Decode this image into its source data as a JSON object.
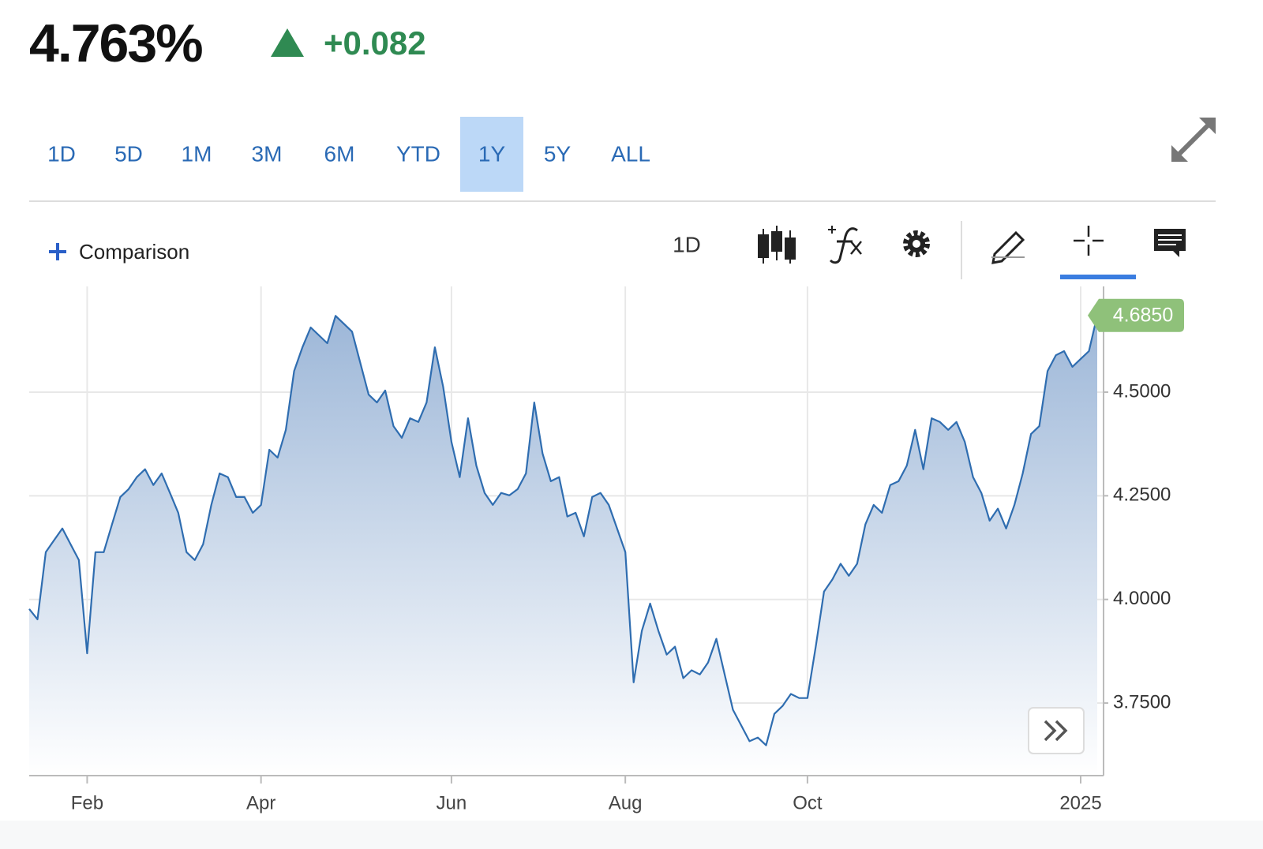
{
  "header": {
    "price": "4.763%",
    "change": "+0.082"
  },
  "ranges": [
    "1D",
    "5D",
    "1M",
    "3M",
    "6M",
    "YTD",
    "1Y",
    "5Y",
    "ALL"
  ],
  "selected_range": "1Y",
  "toolbar": {
    "comparison": "Comparison",
    "interval": "1D"
  },
  "chart_data": {
    "type": "area",
    "categories": [
      null,
      null,
      null,
      null,
      null,
      null,
      null,
      "Feb",
      null,
      null,
      null,
      null,
      null,
      null,
      null,
      null,
      null,
      null,
      null,
      null,
      null,
      null,
      null,
      null,
      null,
      null,
      null,
      null,
      "Apr",
      null,
      null,
      null,
      null,
      null,
      null,
      null,
      null,
      null,
      null,
      null,
      null,
      null,
      null,
      null,
      null,
      null,
      null,
      null,
      null,
      null,
      null,
      "Jun",
      null,
      null,
      null,
      null,
      null,
      null,
      null,
      null,
      null,
      null,
      null,
      null,
      null,
      null,
      null,
      null,
      null,
      null,
      null,
      null,
      "Aug",
      null,
      null,
      null,
      null,
      null,
      null,
      null,
      null,
      null,
      null,
      null,
      null,
      null,
      null,
      null,
      null,
      null,
      null,
      null,
      null,
      null,
      "Oct",
      null,
      null,
      null,
      null,
      null,
      null,
      null,
      null,
      null,
      null,
      null,
      null,
      null,
      null,
      null,
      null,
      null,
      null,
      null,
      null,
      null,
      null,
      null,
      null,
      null,
      null,
      null,
      null,
      null,
      null,
      null,
      null,
      "2025",
      null,
      null
    ],
    "values": [
      3.977,
      3.952,
      4.114,
      4.143,
      4.171,
      4.133,
      4.095,
      3.87,
      4.114,
      4.114,
      4.181,
      4.247,
      4.266,
      4.295,
      4.314,
      4.276,
      4.304,
      4.257,
      4.209,
      4.114,
      4.095,
      4.133,
      4.228,
      4.304,
      4.295,
      4.247,
      4.247,
      4.209,
      4.228,
      4.361,
      4.342,
      4.409,
      4.551,
      4.608,
      4.656,
      4.637,
      4.618,
      4.684,
      4.665,
      4.646,
      4.57,
      4.494,
      4.475,
      4.504,
      4.418,
      4.39,
      4.437,
      4.428,
      4.475,
      4.608,
      4.513,
      4.38,
      4.295,
      4.437,
      4.323,
      4.257,
      4.228,
      4.257,
      4.251,
      4.266,
      4.304,
      4.475,
      4.352,
      4.285,
      4.295,
      4.2,
      4.209,
      4.152,
      4.247,
      4.257,
      4.228,
      4.171,
      4.114,
      3.8,
      3.924,
      3.99,
      3.924,
      3.867,
      3.886,
      3.81,
      3.829,
      3.819,
      3.848,
      3.905,
      3.819,
      3.734,
      3.696,
      3.658,
      3.667,
      3.648,
      3.724,
      3.743,
      3.772,
      3.762,
      3.762,
      3.886,
      4.019,
      4.048,
      4.086,
      4.057,
      4.086,
      4.181,
      4.228,
      4.209,
      4.276,
      4.285,
      4.323,
      4.409,
      4.314,
      4.437,
      4.428,
      4.409,
      4.428,
      4.38,
      4.295,
      4.257,
      4.19,
      4.219,
      4.171,
      4.228,
      4.304,
      4.399,
      4.418,
      4.551,
      4.589,
      4.599,
      4.561,
      4.58,
      4.599,
      4.685
    ],
    "value_labels": [
      null,
      null,
      null,
      null,
      null,
      null,
      null,
      null,
      null,
      null,
      null,
      null,
      null,
      null,
      null,
      null,
      null,
      null,
      null,
      null,
      null,
      null,
      null,
      null,
      null,
      null,
      null,
      null,
      null,
      null,
      null,
      null,
      null,
      null,
      null,
      null,
      null,
      null,
      null,
      null,
      null,
      null,
      null,
      null,
      null,
      null,
      null,
      null,
      null,
      null,
      null,
      null,
      null,
      null,
      null,
      null,
      null,
      null,
      null,
      null,
      null,
      null,
      null,
      null,
      null,
      null,
      null,
      null,
      null,
      null,
      null,
      null,
      null,
      null,
      null,
      null,
      null,
      null,
      null,
      null,
      null,
      null,
      null,
      null,
      null,
      null,
      null,
      null,
      null,
      null,
      null,
      null,
      null,
      null,
      null,
      null,
      null,
      null,
      null,
      null,
      null,
      null,
      null,
      null,
      null,
      null,
      null,
      null,
      null,
      null,
      null,
      null,
      null,
      null,
      null,
      null,
      null,
      null,
      null,
      null,
      null,
      null,
      null,
      null,
      null,
      null,
      null,
      null,
      null,
      "4.6850"
    ],
    "color": "#2f6db0",
    "ylim": [
      3.575,
      4.755
    ],
    "yticks": [
      {
        "value": 3.75,
        "label": "3.7500"
      },
      {
        "value": 4.0,
        "label": "4.0000"
      },
      {
        "value": 4.25,
        "label": "4.2500"
      },
      {
        "value": 4.5,
        "label": "4.5000"
      }
    ],
    "grid": true
  }
}
